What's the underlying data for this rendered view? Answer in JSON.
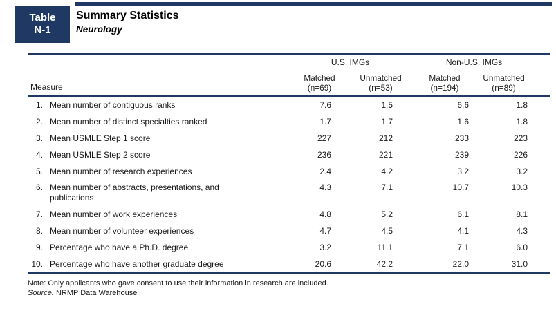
{
  "header": {
    "badge_line1": "Table",
    "badge_line2": "N-1",
    "title": "Summary Statistics",
    "subtitle": "Neurology"
  },
  "table": {
    "measure_header": "Measure",
    "groups": [
      {
        "label": "U.S. IMGs",
        "columns": [
          {
            "line1": "Matched",
            "line2": "(n=69)"
          },
          {
            "line1": "Unmatched",
            "line2": "(n=53)"
          }
        ]
      },
      {
        "label": "Non-U.S. IMGs",
        "columns": [
          {
            "line1": "Matched",
            "line2": "(n=194)"
          },
          {
            "line1": "Unmatched",
            "line2": "(n=89)"
          }
        ]
      }
    ],
    "rows": [
      {
        "num": "1.",
        "measure": "Mean number of contiguous ranks",
        "values": [
          "7.6",
          "1.5",
          "6.6",
          "1.8"
        ]
      },
      {
        "num": "2.",
        "measure": "Mean number of distinct specialties ranked",
        "values": [
          "1.7",
          "1.7",
          "1.6",
          "1.8"
        ]
      },
      {
        "num": "3.",
        "measure": "Mean USMLE Step 1 score",
        "values": [
          "227",
          "212",
          "233",
          "223"
        ]
      },
      {
        "num": "4.",
        "measure": "Mean USMLE Step 2 score",
        "values": [
          "236",
          "221",
          "239",
          "226"
        ]
      },
      {
        "num": "5.",
        "measure": "Mean number of research experiences",
        "values": [
          "2.4",
          "4.2",
          "3.2",
          "3.2"
        ]
      },
      {
        "num": "6.",
        "measure": "Mean number of abstracts, presentations, and publications",
        "values": [
          "4.3",
          "7.1",
          "10.7",
          "10.3"
        ]
      },
      {
        "num": "7.",
        "measure": "Mean number of work experiences",
        "values": [
          "4.8",
          "5.2",
          "6.1",
          "8.1"
        ]
      },
      {
        "num": "8.",
        "measure": "Mean number of volunteer experiences",
        "values": [
          "4.7",
          "4.5",
          "4.1",
          "4.3"
        ]
      },
      {
        "num": "9.",
        "measure": "Percentage who have a Ph.D. degree",
        "values": [
          "3.2",
          "11.1",
          "7.1",
          "6.0"
        ]
      },
      {
        "num": "10.",
        "measure": "Percentage who have another graduate degree",
        "values": [
          "20.6",
          "42.2",
          "22.0",
          "31.0"
        ]
      }
    ]
  },
  "footer": {
    "note": "Note: Only applicants who gave consent to use their information in research are included.",
    "source_label": "Source.",
    "source_text": "NRMP Data Warehouse"
  },
  "colors": {
    "navy": "#1F3864",
    "text": "#1a1a1a"
  }
}
